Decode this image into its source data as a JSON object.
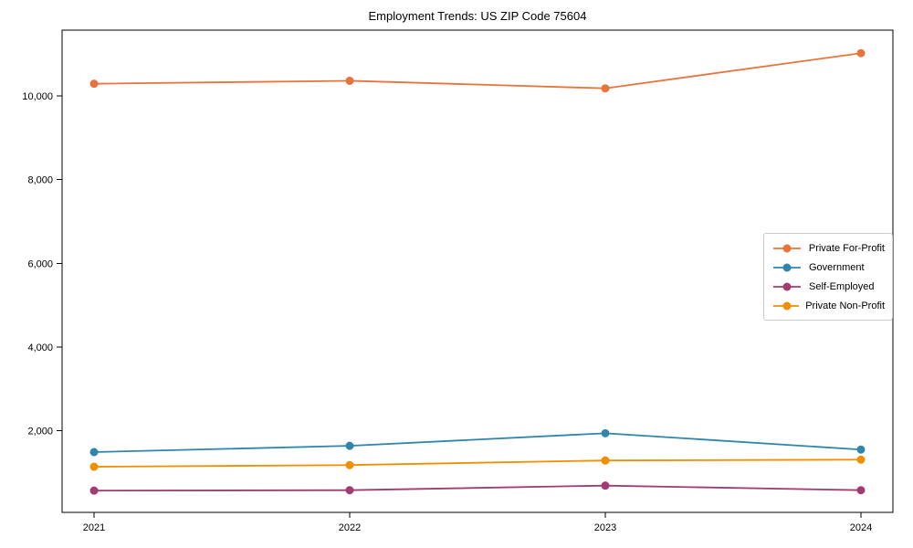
{
  "figure": {
    "background": "#ffffff",
    "axis_color": "#000000"
  },
  "chart_data": {
    "type": "line",
    "title": "Employment Trends: US ZIP Code 75604",
    "x": [
      "2021",
      "2022",
      "2023",
      "2024"
    ],
    "xlabel": "",
    "ylabel": "",
    "ylim": [
      50,
      11570
    ],
    "grid": false,
    "legend_position": "center right",
    "yticks": [
      {
        "value": 2000,
        "label": "2,000"
      },
      {
        "value": 4000,
        "label": "4,000"
      },
      {
        "value": 6000,
        "label": "6,000"
      },
      {
        "value": 8000,
        "label": "8,000"
      },
      {
        "value": 10000,
        "label": "10,000"
      }
    ],
    "series": [
      {
        "name": "Private For-Profit",
        "color": "#E8743B",
        "values": [
          10290,
          10360,
          10180,
          11020
        ]
      },
      {
        "name": "Government",
        "color": "#2E86AB",
        "values": [
          1490,
          1640,
          1940,
          1550
        ]
      },
      {
        "name": "Self-Employed",
        "color": "#A23B72",
        "values": [
          570,
          580,
          690,
          580
        ]
      },
      {
        "name": "Private Non-Profit",
        "color": "#F18F01",
        "values": [
          1140,
          1180,
          1290,
          1310
        ]
      }
    ]
  }
}
